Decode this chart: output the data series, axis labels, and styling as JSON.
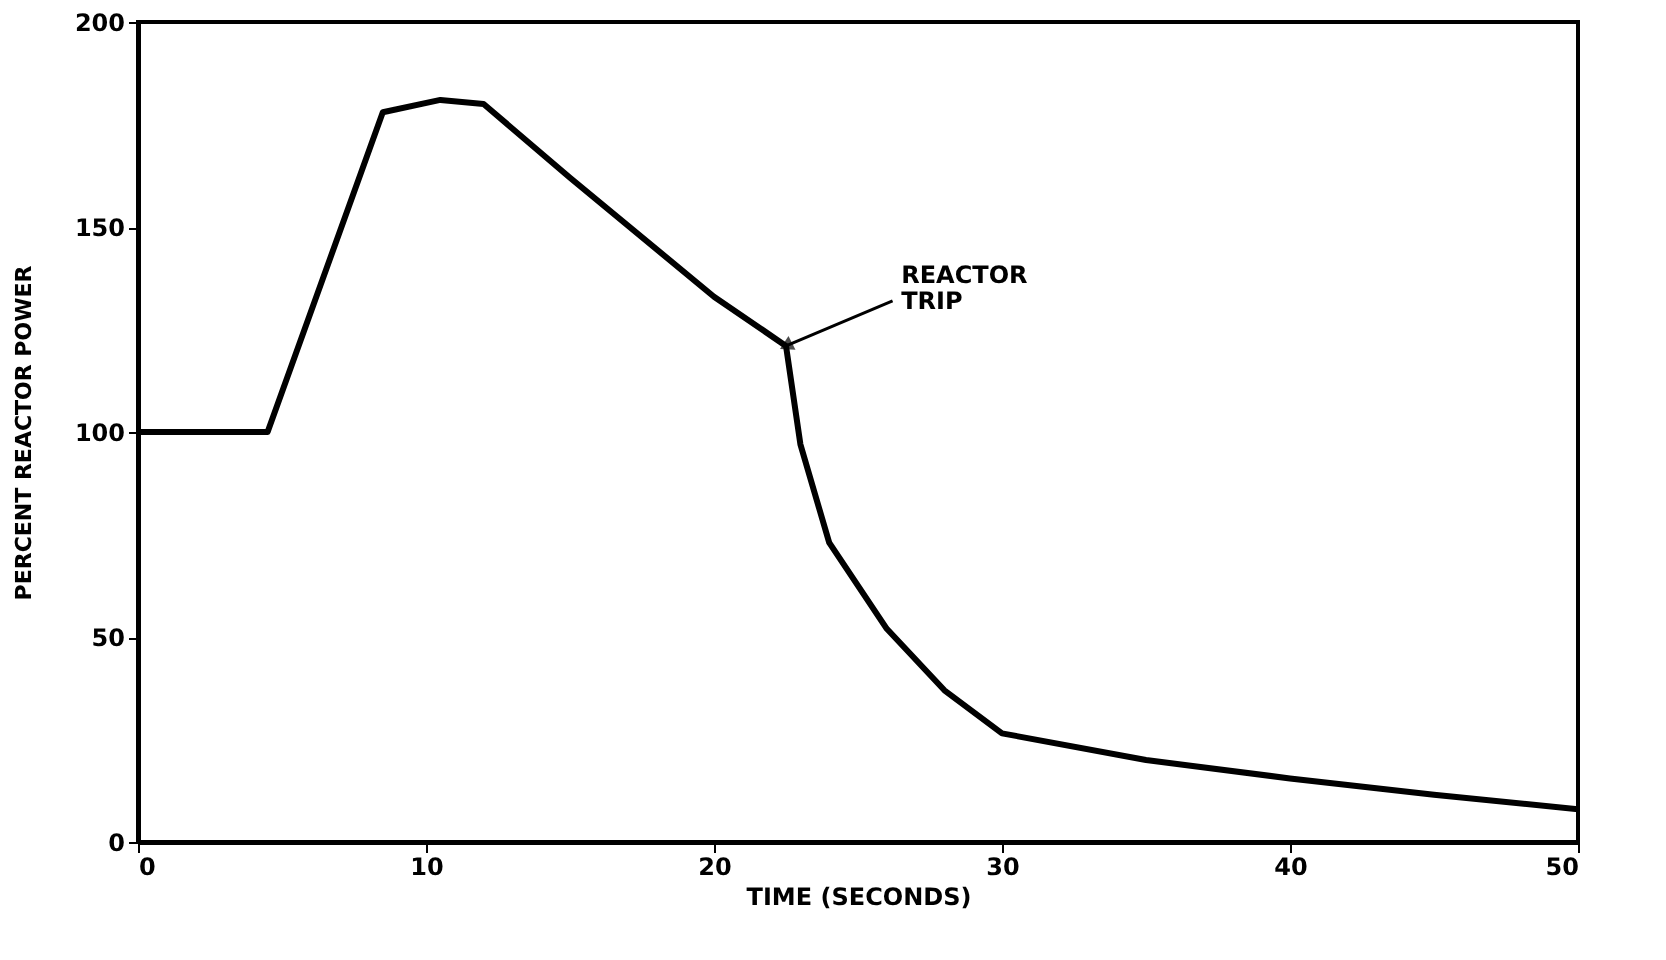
{
  "chart_data": {
    "type": "line",
    "xlabel": "TIME (SECONDS)",
    "ylabel": "PERCENT REACTOR POWER",
    "x": [
      0,
      4.5,
      8.5,
      10.5,
      12,
      15,
      20,
      22.5,
      23,
      24,
      26,
      28,
      30,
      35,
      40,
      45,
      50
    ],
    "series": [
      {
        "color": "#000000",
        "values": [
          100,
          100,
          178,
          181,
          180,
          162,
          133,
          121,
          97,
          73,
          52,
          37,
          26.5,
          20,
          15.5,
          11.5,
          8
        ]
      }
    ],
    "xlim": [
      0,
      50
    ],
    "xticks": [
      0,
      10,
      20,
      30,
      40,
      50
    ],
    "ylim": [
      0,
      200
    ],
    "yticks": [
      0,
      50,
      100,
      150,
      200
    ],
    "grid": false,
    "marker": "none",
    "line_style": "solid",
    "annotations": [
      {
        "text": "REACTOR\nTRIP",
        "x": 22.5,
        "y": 121
      }
    ]
  }
}
